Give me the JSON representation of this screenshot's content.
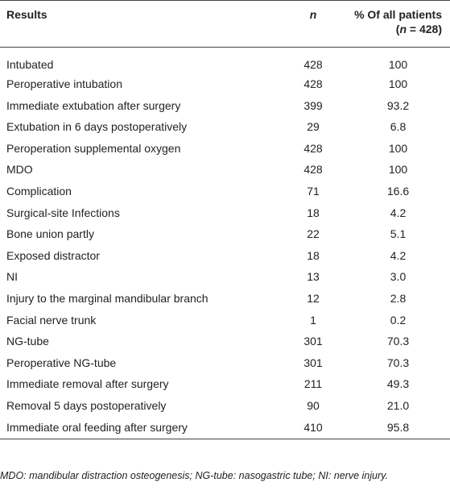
{
  "header": {
    "col0": "Results",
    "col1": "n",
    "col2_line1": "% Of all patients",
    "col2_open": "(",
    "col2_var": "n",
    "col2_rest": " = 428)"
  },
  "table": {
    "rows": [
      [
        "Intubated",
        "428",
        "100"
      ],
      [
        "Peroperative intubation",
        "428",
        "100"
      ],
      [
        "Immediate extubation after surgery",
        "399",
        "93.2"
      ],
      [
        "Extubation in 6 days postoperatively",
        "29",
        "6.8"
      ],
      [
        "Peroperation supplemental oxygen",
        "428",
        "100"
      ],
      [
        "MDO",
        "428",
        "100"
      ],
      [
        "Complication",
        "71",
        "16.6"
      ],
      [
        "Surgical-site Infections",
        "18",
        "4.2"
      ],
      [
        "Bone union partly",
        "22",
        "5.1"
      ],
      [
        "Exposed distractor",
        "18",
        "4.2"
      ],
      [
        "NI",
        "13",
        "3.0"
      ],
      [
        "Injury to the marginal mandibular branch",
        "12",
        "2.8"
      ],
      [
        "Facial nerve trunk",
        "1",
        "0.2"
      ],
      [
        "NG-tube",
        "301",
        "70.3"
      ],
      [
        "Peroperative NG-tube",
        "301",
        "70.3"
      ],
      [
        "Immediate removal after surgery",
        "211",
        "49.3"
      ],
      [
        "Removal 5 days postoperatively",
        "90",
        "21.0"
      ],
      [
        "Immediate oral feeding after surgery",
        "410",
        "95.8"
      ]
    ]
  },
  "footnote": "MDO: mandibular distraction osteogenesis; NG-tube: nasogastric tube; NI: nerve injury."
}
